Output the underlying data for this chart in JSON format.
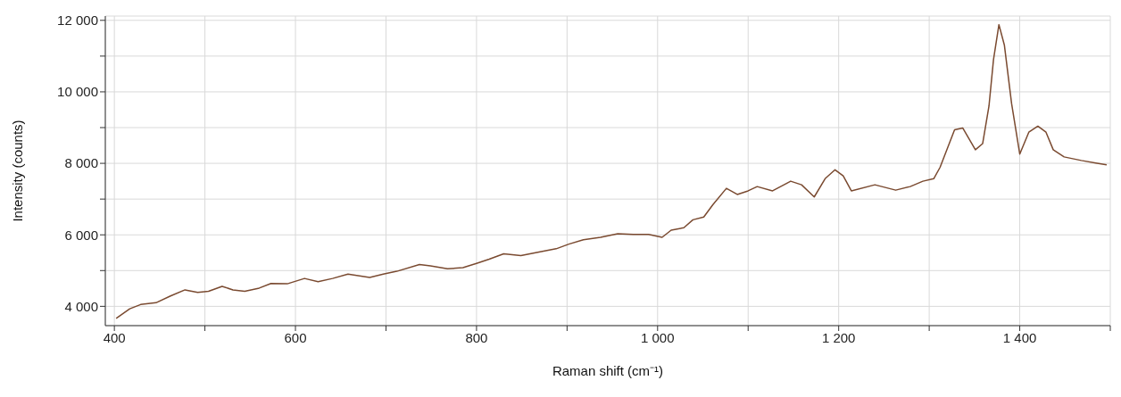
{
  "chart_data": {
    "type": "line",
    "xlabel": "Raman shift (cm⁻¹)",
    "ylabel": "Intensity (counts)",
    "x": [
      402,
      417,
      429,
      446,
      462,
      478,
      492,
      504,
      519,
      531,
      544,
      560,
      573,
      591,
      610,
      625,
      641,
      658,
      682,
      697,
      712,
      737,
      749,
      768,
      785,
      800,
      814,
      830,
      849,
      869,
      888,
      902,
      918,
      937,
      956,
      973,
      990,
      1005,
      1015,
      1029,
      1039,
      1051,
      1061,
      1076,
      1088,
      1100,
      1110,
      1127,
      1147,
      1159,
      1173,
      1185,
      1196,
      1205,
      1214,
      1240,
      1263,
      1279,
      1293,
      1305,
      1312,
      1328,
      1337,
      1351,
      1359,
      1366,
      1371,
      1377,
      1383,
      1391,
      1400,
      1410,
      1420,
      1429,
      1437,
      1449,
      1468,
      1484,
      1496
    ],
    "series": [
      {
        "color": "#7a4a30",
        "values": [
          3660,
          3930,
          4050,
          4100,
          4290,
          4460,
          4390,
          4420,
          4560,
          4460,
          4420,
          4510,
          4640,
          4630,
          4780,
          4690,
          4780,
          4900,
          4810,
          4900,
          4980,
          5170,
          5130,
          5050,
          5080,
          5200,
          5320,
          5470,
          5420,
          5520,
          5610,
          5740,
          5860,
          5930,
          6030,
          6010,
          6010,
          5930,
          6130,
          6200,
          6420,
          6500,
          6840,
          7300,
          7130,
          7230,
          7350,
          7230,
          7500,
          7400,
          7060,
          7570,
          7820,
          7650,
          7230,
          7400,
          7250,
          7350,
          7500,
          7570,
          7890,
          8940,
          8990,
          8380,
          8550,
          9600,
          10900,
          11880,
          11310,
          9670,
          8260,
          8870,
          9040,
          8870,
          8380,
          8180,
          8080,
          8010,
          7960
        ]
      }
    ],
    "xlim": [
      390,
      1500
    ],
    "xticks": [
      400,
      {
        "value": 500,
        "label": null
      },
      600,
      {
        "value": 700,
        "label": null
      },
      800,
      {
        "value": 900,
        "label": null
      },
      {
        "value": 1000,
        "label": "1 000"
      },
      {
        "value": 1100,
        "label": null
      },
      {
        "value": 1200,
        "label": "1 200"
      },
      {
        "value": 1300,
        "label": null
      },
      {
        "value": 1400,
        "label": "1 400"
      },
      {
        "value": 1500,
        "label": null
      }
    ],
    "ylim": [
      3460,
      12120
    ],
    "yticks": [
      {
        "value": 4000,
        "label": "4 000"
      },
      {
        "value": 5000,
        "label": null
      },
      {
        "value": 6000,
        "label": "6 000"
      },
      {
        "value": 7000,
        "label": null
      },
      {
        "value": 8000,
        "label": "8 000"
      },
      {
        "value": 9000,
        "label": null
      },
      {
        "value": 10000,
        "label": "10 000"
      },
      {
        "value": 11000,
        "label": null
      },
      {
        "value": 12000,
        "label": "12 000"
      }
    ],
    "grid": true,
    "marker": "none",
    "line_style": "solid",
    "legend": false
  }
}
